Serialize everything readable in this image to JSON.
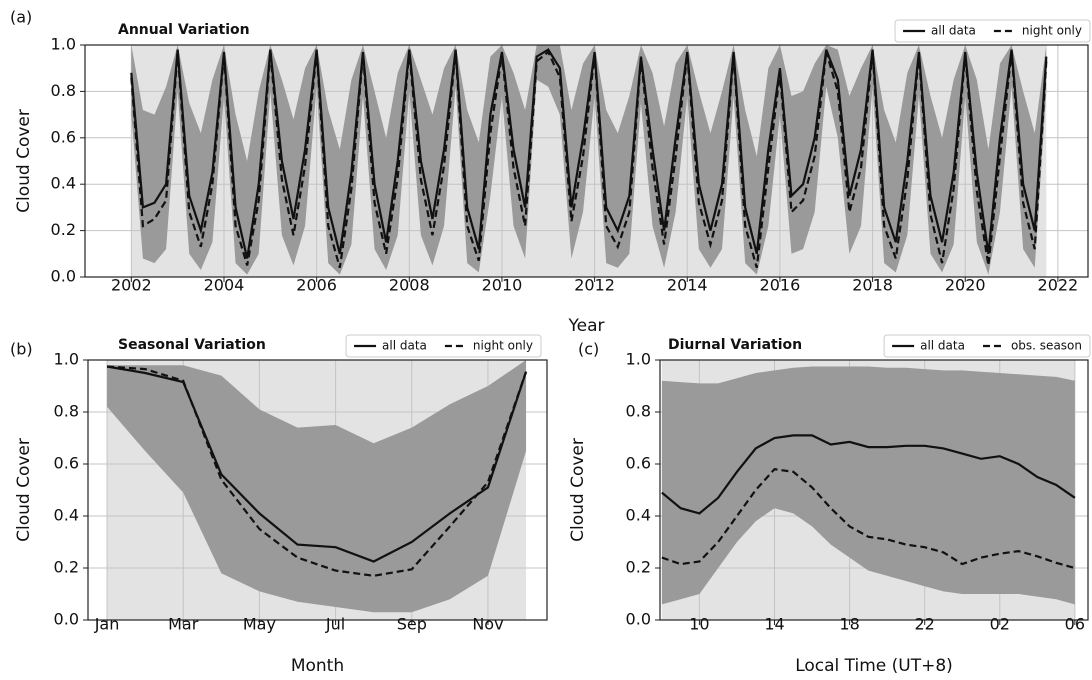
{
  "chart_data": [
    {
      "type": "line",
      "label": "(a)",
      "title": "Annual Variation",
      "xlabel": "Year",
      "ylabel": "Cloud Cover",
      "x": [
        2002,
        2002.25,
        2002.5,
        2002.75,
        2003,
        2003.25,
        2003.5,
        2003.75,
        2004,
        2004.25,
        2004.5,
        2004.75,
        2005,
        2005.25,
        2005.5,
        2005.75,
        2006,
        2006.25,
        2006.5,
        2006.75,
        2007,
        2007.25,
        2007.5,
        2007.75,
        2008,
        2008.25,
        2008.5,
        2008.75,
        2009,
        2009.25,
        2009.5,
        2009.75,
        2010,
        2010.25,
        2010.5,
        2010.75,
        2011,
        2011.25,
        2011.5,
        2011.75,
        2012,
        2012.25,
        2012.5,
        2012.75,
        2013,
        2013.25,
        2013.5,
        2013.75,
        2014,
        2014.25,
        2014.5,
        2014.75,
        2015,
        2015.25,
        2015.5,
        2015.75,
        2016,
        2016.25,
        2016.5,
        2016.75,
        2017,
        2017.25,
        2017.5,
        2017.75,
        2018,
        2018.25,
        2018.5,
        2018.75,
        2019,
        2019.25,
        2019.5,
        2019.75,
        2020,
        2020.25,
        2020.5,
        2020.75,
        2021,
        2021.25,
        2021.5,
        2021.75
      ],
      "series": [
        {
          "name": "all data",
          "color": "#111111",
          "linestyle": "solid",
          "values": [
            0.88,
            0.3,
            0.32,
            0.4,
            0.98,
            0.35,
            0.2,
            0.45,
            0.97,
            0.3,
            0.08,
            0.4,
            0.98,
            0.5,
            0.25,
            0.55,
            0.98,
            0.3,
            0.1,
            0.45,
            0.97,
            0.4,
            0.15,
            0.5,
            0.98,
            0.5,
            0.25,
            0.55,
            0.98,
            0.3,
            0.12,
            0.7,
            0.97,
            0.55,
            0.3,
            0.95,
            0.98,
            0.9,
            0.3,
            0.6,
            0.97,
            0.3,
            0.2,
            0.35,
            0.95,
            0.55,
            0.2,
            0.6,
            0.97,
            0.4,
            0.2,
            0.4,
            0.97,
            0.3,
            0.1,
            0.55,
            0.9,
            0.35,
            0.4,
            0.6,
            0.98,
            0.85,
            0.35,
            0.55,
            0.98,
            0.3,
            0.15,
            0.5,
            0.97,
            0.35,
            0.15,
            0.45,
            0.97,
            0.45,
            0.1,
            0.6,
            0.98,
            0.4,
            0.2,
            0.95
          ]
        },
        {
          "name": "night only",
          "color": "#111111",
          "linestyle": "dashed",
          "values": [
            0.86,
            0.22,
            0.25,
            0.33,
            0.97,
            0.28,
            0.13,
            0.4,
            0.96,
            0.22,
            0.05,
            0.33,
            0.97,
            0.42,
            0.18,
            0.48,
            0.97,
            0.22,
            0.04,
            0.38,
            0.96,
            0.32,
            0.1,
            0.43,
            0.97,
            0.42,
            0.18,
            0.48,
            0.97,
            0.22,
            0.07,
            0.62,
            0.96,
            0.47,
            0.22,
            0.93,
            0.97,
            0.86,
            0.24,
            0.52,
            0.96,
            0.22,
            0.13,
            0.28,
            0.94,
            0.47,
            0.14,
            0.52,
            0.96,
            0.32,
            0.14,
            0.33,
            0.96,
            0.22,
            0.04,
            0.47,
            0.88,
            0.28,
            0.33,
            0.52,
            0.97,
            0.8,
            0.28,
            0.47,
            0.97,
            0.22,
            0.08,
            0.42,
            0.96,
            0.27,
            0.06,
            0.38,
            0.96,
            0.37,
            0.05,
            0.52,
            0.97,
            0.32,
            0.12,
            0.93
          ]
        }
      ],
      "band": {
        "color": "#9a9a9a",
        "upper": [
          1.0,
          0.72,
          0.7,
          0.82,
          1.0,
          0.75,
          0.62,
          0.85,
          1.0,
          0.7,
          0.5,
          0.8,
          1.0,
          0.85,
          0.68,
          0.9,
          1.0,
          0.72,
          0.55,
          0.85,
          1.0,
          0.8,
          0.6,
          0.88,
          1.0,
          0.85,
          0.7,
          0.9,
          1.0,
          0.72,
          0.58,
          0.95,
          1.0,
          0.88,
          0.72,
          1.0,
          1.0,
          1.0,
          0.72,
          0.92,
          1.0,
          0.72,
          0.62,
          0.78,
          1.0,
          0.88,
          0.65,
          0.92,
          1.0,
          0.8,
          0.62,
          0.8,
          1.0,
          0.72,
          0.52,
          0.9,
          1.0,
          0.78,
          0.8,
          0.92,
          1.0,
          0.98,
          0.78,
          0.9,
          1.0,
          0.72,
          0.58,
          0.88,
          1.0,
          0.78,
          0.6,
          0.85,
          1.0,
          0.85,
          0.55,
          0.92,
          1.0,
          0.8,
          0.62,
          1.0
        ],
        "lower": [
          0.7,
          0.08,
          0.06,
          0.12,
          0.8,
          0.1,
          0.03,
          0.15,
          0.78,
          0.06,
          0.01,
          0.1,
          0.8,
          0.18,
          0.05,
          0.22,
          0.82,
          0.06,
          0.01,
          0.14,
          0.78,
          0.12,
          0.03,
          0.18,
          0.8,
          0.18,
          0.05,
          0.22,
          0.82,
          0.06,
          0.02,
          0.35,
          0.78,
          0.22,
          0.08,
          0.85,
          0.82,
          0.7,
          0.08,
          0.28,
          0.78,
          0.06,
          0.04,
          0.1,
          0.75,
          0.22,
          0.04,
          0.28,
          0.78,
          0.12,
          0.04,
          0.12,
          0.78,
          0.06,
          0.01,
          0.22,
          0.7,
          0.1,
          0.12,
          0.28,
          0.82,
          0.6,
          0.1,
          0.22,
          0.82,
          0.06,
          0.02,
          0.18,
          0.78,
          0.1,
          0.02,
          0.14,
          0.78,
          0.15,
          0.01,
          0.28,
          0.82,
          0.12,
          0.04,
          0.8
        ]
      },
      "xlim": [
        2001,
        2022.65
      ],
      "xticks": [
        2002,
        2004,
        2006,
        2008,
        2010,
        2012,
        2014,
        2016,
        2018,
        2020,
        2022
      ],
      "ylim": [
        0,
        1
      ],
      "yticks": [
        {
          "value": 0,
          "label": "0.0"
        },
        {
          "value": 0.2,
          "label": "0.2"
        },
        {
          "value": 0.4,
          "label": "0.4"
        },
        {
          "value": 0.6,
          "label": "0.6"
        },
        {
          "value": 0.8,
          "label": "0.8"
        },
        {
          "value": 1,
          "label": "1.0"
        }
      ],
      "grid": true,
      "legend": "upper right"
    },
    {
      "type": "line",
      "label": "(b)",
      "title": "Seasonal Variation",
      "xlabel": "Month",
      "ylabel": "Cloud Cover",
      "x": [
        1,
        2,
        3,
        4,
        5,
        6,
        7,
        8,
        9,
        10,
        11,
        12
      ],
      "series": [
        {
          "name": "all data",
          "color": "#111111",
          "linestyle": "solid",
          "values": [
            0.975,
            0.95,
            0.915,
            0.56,
            0.41,
            0.29,
            0.28,
            0.225,
            0.3,
            0.41,
            0.51,
            0.955
          ]
        },
        {
          "name": "night only",
          "color": "#111111",
          "linestyle": "dashed",
          "values": [
            0.975,
            0.965,
            0.92,
            0.54,
            0.35,
            0.24,
            0.19,
            0.17,
            0.195,
            0.36,
            0.53,
            0.955
          ]
        }
      ],
      "band": {
        "color": "#9a9a9a",
        "upper": [
          0.98,
          0.98,
          0.98,
          0.94,
          0.81,
          0.74,
          0.75,
          0.68,
          0.74,
          0.83,
          0.9,
          1.0
        ],
        "lower": [
          0.82,
          0.65,
          0.49,
          0.18,
          0.11,
          0.07,
          0.05,
          0.03,
          0.03,
          0.08,
          0.17,
          0.65
        ]
      },
      "xlim": [
        0.5,
        12.55
      ],
      "xticks": [
        {
          "value": 1,
          "label": "Jan"
        },
        {
          "value": 3,
          "label": "Mar"
        },
        {
          "value": 5,
          "label": "May"
        },
        {
          "value": 7,
          "label": "Jul"
        },
        {
          "value": 9,
          "label": "Sep"
        },
        {
          "value": 11,
          "label": "Nov"
        }
      ],
      "ylim": [
        0,
        1
      ],
      "yticks": [
        {
          "value": 0,
          "label": "0.0"
        },
        {
          "value": 0.2,
          "label": "0.2"
        },
        {
          "value": 0.4,
          "label": "0.4"
        },
        {
          "value": 0.6,
          "label": "0.6"
        },
        {
          "value": 0.8,
          "label": "0.8"
        },
        {
          "value": 1,
          "label": "1.0"
        }
      ],
      "grid": true,
      "legend": "upper right"
    },
    {
      "type": "line",
      "label": "(c)",
      "title": "Diurnal Variation",
      "xlabel": "Local Time (UT+8)",
      "ylabel": "Cloud Cover",
      "x": [
        8,
        9,
        10,
        11,
        12,
        13,
        14,
        15,
        16,
        17,
        18,
        19,
        20,
        21,
        22,
        23,
        24,
        25,
        26,
        27,
        28,
        29,
        30
      ],
      "series": [
        {
          "name": "all data",
          "color": "#111111",
          "linestyle": "solid",
          "values": [
            0.49,
            0.43,
            0.41,
            0.47,
            0.57,
            0.66,
            0.7,
            0.71,
            0.71,
            0.675,
            0.685,
            0.665,
            0.665,
            0.67,
            0.67,
            0.66,
            0.64,
            0.62,
            0.63,
            0.6,
            0.55,
            0.52,
            0.47
          ]
        },
        {
          "name": "obs. season",
          "color": "#111111",
          "linestyle": "dashed",
          "values": [
            0.24,
            0.215,
            0.225,
            0.3,
            0.4,
            0.5,
            0.58,
            0.57,
            0.51,
            0.43,
            0.36,
            0.32,
            0.31,
            0.29,
            0.28,
            0.26,
            0.215,
            0.24,
            0.255,
            0.265,
            0.245,
            0.22,
            0.2
          ]
        }
      ],
      "band": {
        "color": "#9a9a9a",
        "upper": [
          0.92,
          0.915,
          0.91,
          0.91,
          0.93,
          0.95,
          0.96,
          0.97,
          0.975,
          0.975,
          0.975,
          0.975,
          0.97,
          0.97,
          0.965,
          0.96,
          0.96,
          0.955,
          0.95,
          0.945,
          0.94,
          0.935,
          0.92
        ],
        "lower": [
          0.06,
          0.08,
          0.1,
          0.2,
          0.3,
          0.38,
          0.43,
          0.41,
          0.36,
          0.29,
          0.24,
          0.19,
          0.17,
          0.15,
          0.13,
          0.11,
          0.1,
          0.1,
          0.1,
          0.1,
          0.09,
          0.08,
          0.06
        ]
      },
      "xlim": [
        7.9,
        30.7
      ],
      "xticks": [
        10,
        14,
        18,
        22,
        {
          "value": 26,
          "label": "02"
        },
        {
          "value": 30,
          "label": "06"
        }
      ],
      "ylim": [
        0,
        1
      ],
      "yticks": [
        {
          "value": 0,
          "label": "0.0"
        },
        {
          "value": 0.2,
          "label": "0.2"
        },
        {
          "value": 0.4,
          "label": "0.4"
        },
        {
          "value": 0.6,
          "label": "0.6"
        },
        {
          "value": 0.8,
          "label": "0.8"
        },
        {
          "value": 1,
          "label": "1.0"
        }
      ],
      "grid": true,
      "legend": "upper right"
    }
  ]
}
